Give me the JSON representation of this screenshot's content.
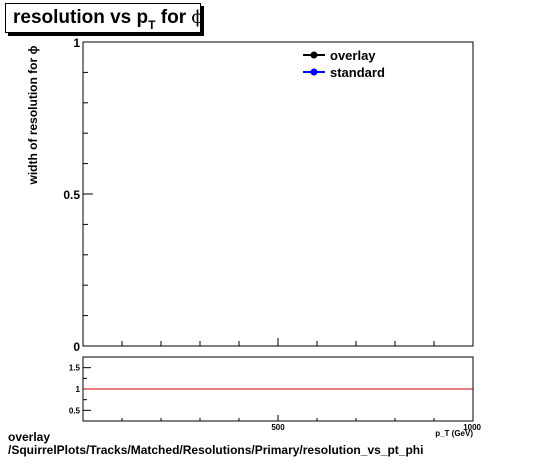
{
  "title": {
    "prefix": "resolution vs p",
    "sub": "T",
    "mid": " for ",
    "greek": "ϕ"
  },
  "chart_data": [
    {
      "type": "line",
      "title": "resolution vs pT for ϕ",
      "ylabel": "width of resolution for ϕ",
      "xlabel": "p_T (GeV)",
      "xlim": [
        0,
        1000
      ],
      "ylim": [
        0,
        1
      ],
      "y_ticks": [
        "1",
        "0.5",
        "0"
      ],
      "x_ticks": [],
      "legend_position": "top-right",
      "series": [
        {
          "name": "overlay",
          "color": "#000000",
          "x": [],
          "y": []
        },
        {
          "name": "standard",
          "color": "#0000ff",
          "x": [],
          "y": []
        }
      ]
    },
    {
      "type": "line",
      "title": "",
      "xlim": [
        0,
        1000
      ],
      "ylim": [
        0.25,
        1.75
      ],
      "y_ticks": [
        "1.5",
        "1",
        "0.5"
      ],
      "x_ticks": [
        "500",
        "1000"
      ],
      "reference_line": {
        "y": 1,
        "color": "#cc0000"
      },
      "series": []
    }
  ],
  "footer": {
    "line1": "overlay",
    "line2": "/SquirrelPlots/Tracks/Matched/Resolutions/Primary/resolution_vs_pt_phi"
  },
  "colors": {
    "overlay": "#000000",
    "standard": "#0000ff",
    "ratio_line": "#cc0000"
  }
}
